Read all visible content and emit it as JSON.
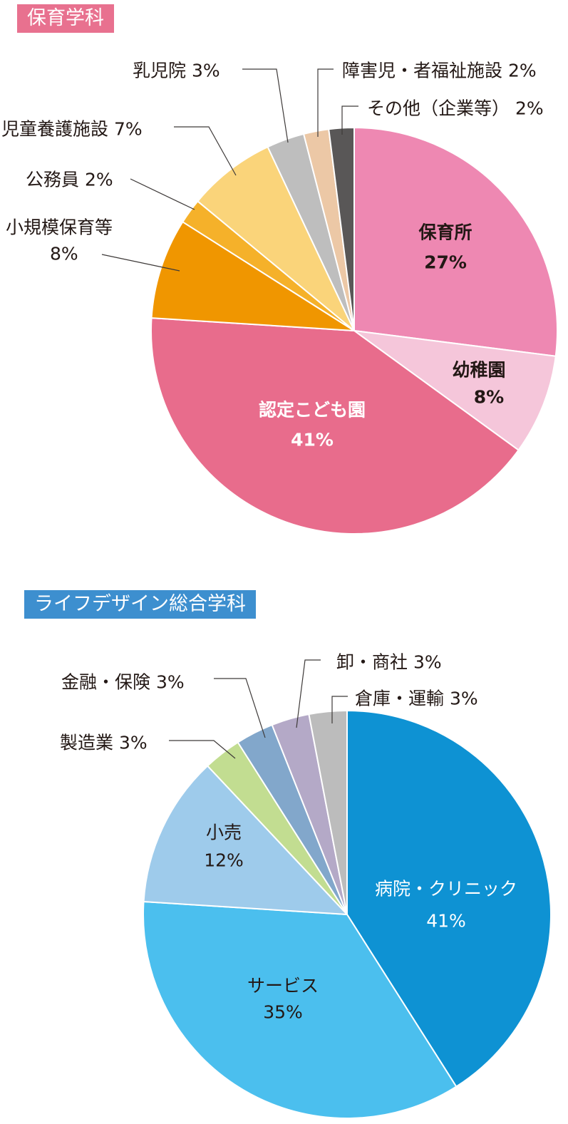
{
  "chart_data": [
    {
      "type": "pie",
      "title": "保育学科",
      "title_color": "#e8718f",
      "start": "12 o'clock, clockwise",
      "slices": [
        {
          "label": "保育所",
          "value": 27,
          "text": "27%",
          "color": "#ee88b2",
          "placement": "inside"
        },
        {
          "label": "幼稚園",
          "value": 8,
          "text": "8%",
          "color": "#f5c6da",
          "placement": "inside"
        },
        {
          "label": "認定こども園",
          "value": 41,
          "text": "41%",
          "color": "#e86c8c",
          "placement": "inside"
        },
        {
          "label": "小規模保育等",
          "value": 8,
          "text": "8%",
          "color": "#f09600",
          "placement": "outside"
        },
        {
          "label": "公務員",
          "value": 2,
          "text": "2%",
          "color": "#f5b12a",
          "placement": "outside"
        },
        {
          "label": "児童養護施設",
          "value": 7,
          "text": "7%",
          "color": "#fad47a",
          "placement": "outside"
        },
        {
          "label": "乳児院",
          "value": 3,
          "text": "3%",
          "color": "#bebebe",
          "placement": "outside"
        },
        {
          "label": "障害児・者福祉施設",
          "value": 2,
          "text": "2%",
          "color": "#ecc8a6",
          "placement": "outside"
        },
        {
          "label": "その他（企業等）",
          "value": 2,
          "text": "2%",
          "color": "#595757",
          "placement": "outside"
        }
      ]
    },
    {
      "type": "pie",
      "title": "ライフデザイン総合学科",
      "title_color": "#3d8fcf",
      "start": "12 o'clock, clockwise",
      "slices": [
        {
          "label": "病院・クリニック",
          "value": 41,
          "text": "41%",
          "color": "#0e92d3",
          "placement": "inside"
        },
        {
          "label": "サービス",
          "value": 35,
          "text": "35%",
          "color": "#4bbfee",
          "placement": "inside"
        },
        {
          "label": "小売",
          "value": 12,
          "text": "12%",
          "color": "#9ecbeb",
          "placement": "inside"
        },
        {
          "label": "製造業",
          "value": 3,
          "text": "3%",
          "color": "#c2dd91",
          "placement": "outside"
        },
        {
          "label": "金融・保険",
          "value": 3,
          "text": "3%",
          "color": "#82a7cb",
          "placement": "outside"
        },
        {
          "label": "卸・商社",
          "value": 3,
          "text": "3%",
          "color": "#b4a9c7",
          "placement": "outside"
        },
        {
          "label": "倉庫・運輸",
          "value": 3,
          "text": "3%",
          "color": "#bcbcbc",
          "placement": "outside"
        }
      ]
    }
  ]
}
